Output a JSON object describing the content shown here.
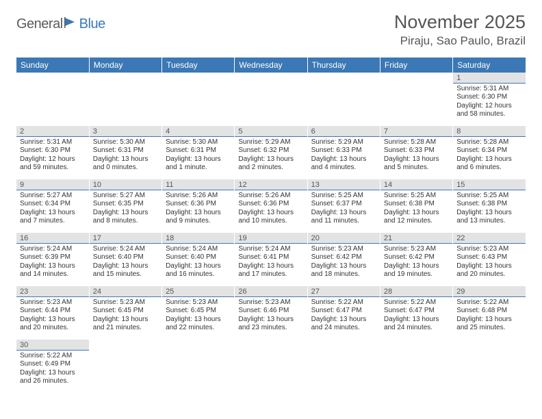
{
  "brand": {
    "a": "General",
    "b": "Blue"
  },
  "title": "November 2025",
  "subtitle": "Piraju, Sao Paulo, Brazil",
  "colors": {
    "header_bg": "#3b78b5",
    "header_fg": "#ffffff",
    "daynum_bg": "#e3e3e3",
    "daynum_border": "#3b78b5",
    "page_bg": "#ffffff",
    "text": "#333333",
    "title_color": "#555555"
  },
  "weekdays": [
    "Sunday",
    "Monday",
    "Tuesday",
    "Wednesday",
    "Thursday",
    "Friday",
    "Saturday"
  ],
  "weeks": [
    [
      null,
      null,
      null,
      null,
      null,
      null,
      {
        "n": "1",
        "sr": "Sunrise: 5:31 AM",
        "ss": "Sunset: 6:30 PM",
        "dl": "Daylight: 12 hours and 58 minutes."
      }
    ],
    [
      {
        "n": "2",
        "sr": "Sunrise: 5:31 AM",
        "ss": "Sunset: 6:30 PM",
        "dl": "Daylight: 12 hours and 59 minutes."
      },
      {
        "n": "3",
        "sr": "Sunrise: 5:30 AM",
        "ss": "Sunset: 6:31 PM",
        "dl": "Daylight: 13 hours and 0 minutes."
      },
      {
        "n": "4",
        "sr": "Sunrise: 5:30 AM",
        "ss": "Sunset: 6:31 PM",
        "dl": "Daylight: 13 hours and 1 minute."
      },
      {
        "n": "5",
        "sr": "Sunrise: 5:29 AM",
        "ss": "Sunset: 6:32 PM",
        "dl": "Daylight: 13 hours and 2 minutes."
      },
      {
        "n": "6",
        "sr": "Sunrise: 5:29 AM",
        "ss": "Sunset: 6:33 PM",
        "dl": "Daylight: 13 hours and 4 minutes."
      },
      {
        "n": "7",
        "sr": "Sunrise: 5:28 AM",
        "ss": "Sunset: 6:33 PM",
        "dl": "Daylight: 13 hours and 5 minutes."
      },
      {
        "n": "8",
        "sr": "Sunrise: 5:28 AM",
        "ss": "Sunset: 6:34 PM",
        "dl": "Daylight: 13 hours and 6 minutes."
      }
    ],
    [
      {
        "n": "9",
        "sr": "Sunrise: 5:27 AM",
        "ss": "Sunset: 6:34 PM",
        "dl": "Daylight: 13 hours and 7 minutes."
      },
      {
        "n": "10",
        "sr": "Sunrise: 5:27 AM",
        "ss": "Sunset: 6:35 PM",
        "dl": "Daylight: 13 hours and 8 minutes."
      },
      {
        "n": "11",
        "sr": "Sunrise: 5:26 AM",
        "ss": "Sunset: 6:36 PM",
        "dl": "Daylight: 13 hours and 9 minutes."
      },
      {
        "n": "12",
        "sr": "Sunrise: 5:26 AM",
        "ss": "Sunset: 6:36 PM",
        "dl": "Daylight: 13 hours and 10 minutes."
      },
      {
        "n": "13",
        "sr": "Sunrise: 5:25 AM",
        "ss": "Sunset: 6:37 PM",
        "dl": "Daylight: 13 hours and 11 minutes."
      },
      {
        "n": "14",
        "sr": "Sunrise: 5:25 AM",
        "ss": "Sunset: 6:38 PM",
        "dl": "Daylight: 13 hours and 12 minutes."
      },
      {
        "n": "15",
        "sr": "Sunrise: 5:25 AM",
        "ss": "Sunset: 6:38 PM",
        "dl": "Daylight: 13 hours and 13 minutes."
      }
    ],
    [
      {
        "n": "16",
        "sr": "Sunrise: 5:24 AM",
        "ss": "Sunset: 6:39 PM",
        "dl": "Daylight: 13 hours and 14 minutes."
      },
      {
        "n": "17",
        "sr": "Sunrise: 5:24 AM",
        "ss": "Sunset: 6:40 PM",
        "dl": "Daylight: 13 hours and 15 minutes."
      },
      {
        "n": "18",
        "sr": "Sunrise: 5:24 AM",
        "ss": "Sunset: 6:40 PM",
        "dl": "Daylight: 13 hours and 16 minutes."
      },
      {
        "n": "19",
        "sr": "Sunrise: 5:24 AM",
        "ss": "Sunset: 6:41 PM",
        "dl": "Daylight: 13 hours and 17 minutes."
      },
      {
        "n": "20",
        "sr": "Sunrise: 5:23 AM",
        "ss": "Sunset: 6:42 PM",
        "dl": "Daylight: 13 hours and 18 minutes."
      },
      {
        "n": "21",
        "sr": "Sunrise: 5:23 AM",
        "ss": "Sunset: 6:42 PM",
        "dl": "Daylight: 13 hours and 19 minutes."
      },
      {
        "n": "22",
        "sr": "Sunrise: 5:23 AM",
        "ss": "Sunset: 6:43 PM",
        "dl": "Daylight: 13 hours and 20 minutes."
      }
    ],
    [
      {
        "n": "23",
        "sr": "Sunrise: 5:23 AM",
        "ss": "Sunset: 6:44 PM",
        "dl": "Daylight: 13 hours and 20 minutes."
      },
      {
        "n": "24",
        "sr": "Sunrise: 5:23 AM",
        "ss": "Sunset: 6:45 PM",
        "dl": "Daylight: 13 hours and 21 minutes."
      },
      {
        "n": "25",
        "sr": "Sunrise: 5:23 AM",
        "ss": "Sunset: 6:45 PM",
        "dl": "Daylight: 13 hours and 22 minutes."
      },
      {
        "n": "26",
        "sr": "Sunrise: 5:23 AM",
        "ss": "Sunset: 6:46 PM",
        "dl": "Daylight: 13 hours and 23 minutes."
      },
      {
        "n": "27",
        "sr": "Sunrise: 5:22 AM",
        "ss": "Sunset: 6:47 PM",
        "dl": "Daylight: 13 hours and 24 minutes."
      },
      {
        "n": "28",
        "sr": "Sunrise: 5:22 AM",
        "ss": "Sunset: 6:47 PM",
        "dl": "Daylight: 13 hours and 24 minutes."
      },
      {
        "n": "29",
        "sr": "Sunrise: 5:22 AM",
        "ss": "Sunset: 6:48 PM",
        "dl": "Daylight: 13 hours and 25 minutes."
      }
    ],
    [
      {
        "n": "30",
        "sr": "Sunrise: 5:22 AM",
        "ss": "Sunset: 6:49 PM",
        "dl": "Daylight: 13 hours and 26 minutes."
      },
      null,
      null,
      null,
      null,
      null,
      null
    ]
  ]
}
